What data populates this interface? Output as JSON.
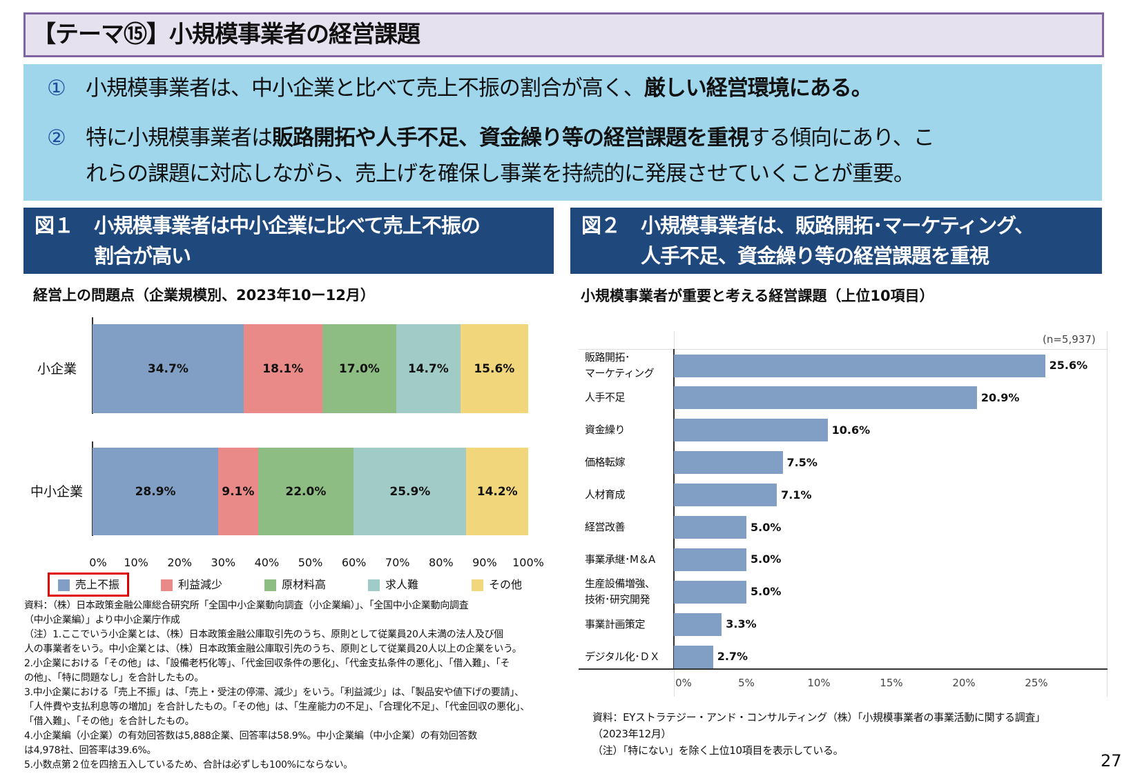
{
  "title": "【テーマ⑮】小規模事業者の経営課題",
  "summary": {
    "p1": {
      "num": "①",
      "a": "小規模事業者は、中小企業と比べて売上不振の割合が高く、",
      "b": "厳しい経営環境にある。"
    },
    "p2": {
      "num": "②",
      "a": "特に小規模事業者は",
      "b": "販路開拓や人手不足、資金繰り等の経営課題を重視",
      "c": "する傾向にあり、こ",
      "d": "れらの課題に対応しながら、売上げを確保し事業を持続的に発展させていくことが重要。"
    }
  },
  "fig1": {
    "label": "図１",
    "title1": "小規模事業者は中小企業に比べて売上不振の",
    "title2": "割合が高い",
    "subtitle": "経営上の問題点（企業規模別、2023年10ー12月）",
    "notes": [
      "資料：（株）日本政策金融公庫総合研究所「全国中小企業動向調査（小企業編）」、「全国中小企業動向調査",
      "（中小企業編）」より中小企業庁作成",
      "（注）1.ここでいう小企業とは、（株）日本政策金融公庫取引先のうち、原則として従業員20人未満の法人及び個",
      "人の事業者をいう。中小企業とは、（株）日本政策金融公庫取引先のうち、原則として従業員20人以上の企業をいう。",
      "2.小企業における「その他」は、「設備老朽化等」、「代金回収条件の悪化」、「代金支払条件の悪化」、「借入難」、「そ",
      "の他」、「特に問題なし」を合計したもの。",
      "3.中小企業における「売上不振」は、「売上・受注の停滞、減少」をいう。「利益減少」は、「製品安や値下げの要請」、",
      "「人件費や支払利息等の増加」を合計したもの。「その他」は、「生産能力の不足」、「合理化不足」、「代金回収の悪化」、",
      "「借入難」、「その他」を合計したもの。",
      "4.小企業編（小企業）の有効回答数は5,888企業、回答率は58.9%。中小企業編（中小企業）の有効回答数",
      "は4,978社、回答率は39.6%。",
      "5.小数点第２位を四捨五入しているため、合計は必ずしも100%にならない。"
    ]
  },
  "fig2": {
    "label": "図２",
    "title1": "小規模事業者は、販路開拓･マーケティング、",
    "title2": "人手不足、資金繰り等の経営課題を重視",
    "subtitle": "小規模事業者が重要と考える経営課題（上位10項目）",
    "n": "(n=5,937)",
    "notes": [
      "資料：EYストラテジー・アンド・コンサルティング（株）「小規模事業者の事業活動に関する調査」",
      "（2023年12月）",
      "（注）「特にない」を除く上位10項目を表示している。"
    ]
  },
  "page_number": "27",
  "chart_data": [
    {
      "type": "bar",
      "orientation": "horizontal",
      "stacked": "percent",
      "categories": [
        "小企業",
        "中小企業"
      ],
      "series": [
        {
          "name": "売上不振",
          "values": [
            34.7,
            28.9
          ],
          "color": "#819fc5",
          "highlighted": true
        },
        {
          "name": "利益減少",
          "values": [
            18.1,
            9.1
          ],
          "color": "#e98a89"
        },
        {
          "name": "原材料高",
          "values": [
            17.0,
            22.0
          ],
          "color": "#8dbd82"
        },
        {
          "name": "求人難",
          "values": [
            14.7,
            25.9
          ],
          "color": "#a0cbc7"
        },
        {
          "name": "その他",
          "values": [
            15.6,
            14.2
          ],
          "color": "#f2d67c"
        }
      ],
      "xticks": [
        "0%",
        "10%",
        "20%",
        "30%",
        "40%",
        "50%",
        "60%",
        "70%",
        "80%",
        "90%",
        "100%"
      ],
      "xlim": [
        0,
        100
      ],
      "legend": "bottom"
    },
    {
      "type": "bar",
      "orientation": "horizontal",
      "categories": [
        "販路開拓･\nマーケティング",
        "人手不足",
        "資金繰り",
        "価格転嫁",
        "人材育成",
        "経営改善",
        "事業承継･M＆A",
        "生産設備増強、\n技術･研究開発",
        "事業計画策定",
        "デジタル化･ＤＸ"
      ],
      "values": [
        25.6,
        20.9,
        10.6,
        7.5,
        7.1,
        5.0,
        5.0,
        5.0,
        3.3,
        2.7
      ],
      "labels": [
        "25.6%",
        "20.9%",
        "10.6%",
        "7.5%",
        "7.1%",
        "5.0%",
        "5.0%",
        "5.0%",
        "3.3%",
        "2.7%"
      ],
      "xticks": [
        "0%",
        "5%",
        "10%",
        "15%",
        "20%",
        "25%"
      ],
      "xlim": [
        0,
        30
      ],
      "color": "#819fc5"
    }
  ]
}
